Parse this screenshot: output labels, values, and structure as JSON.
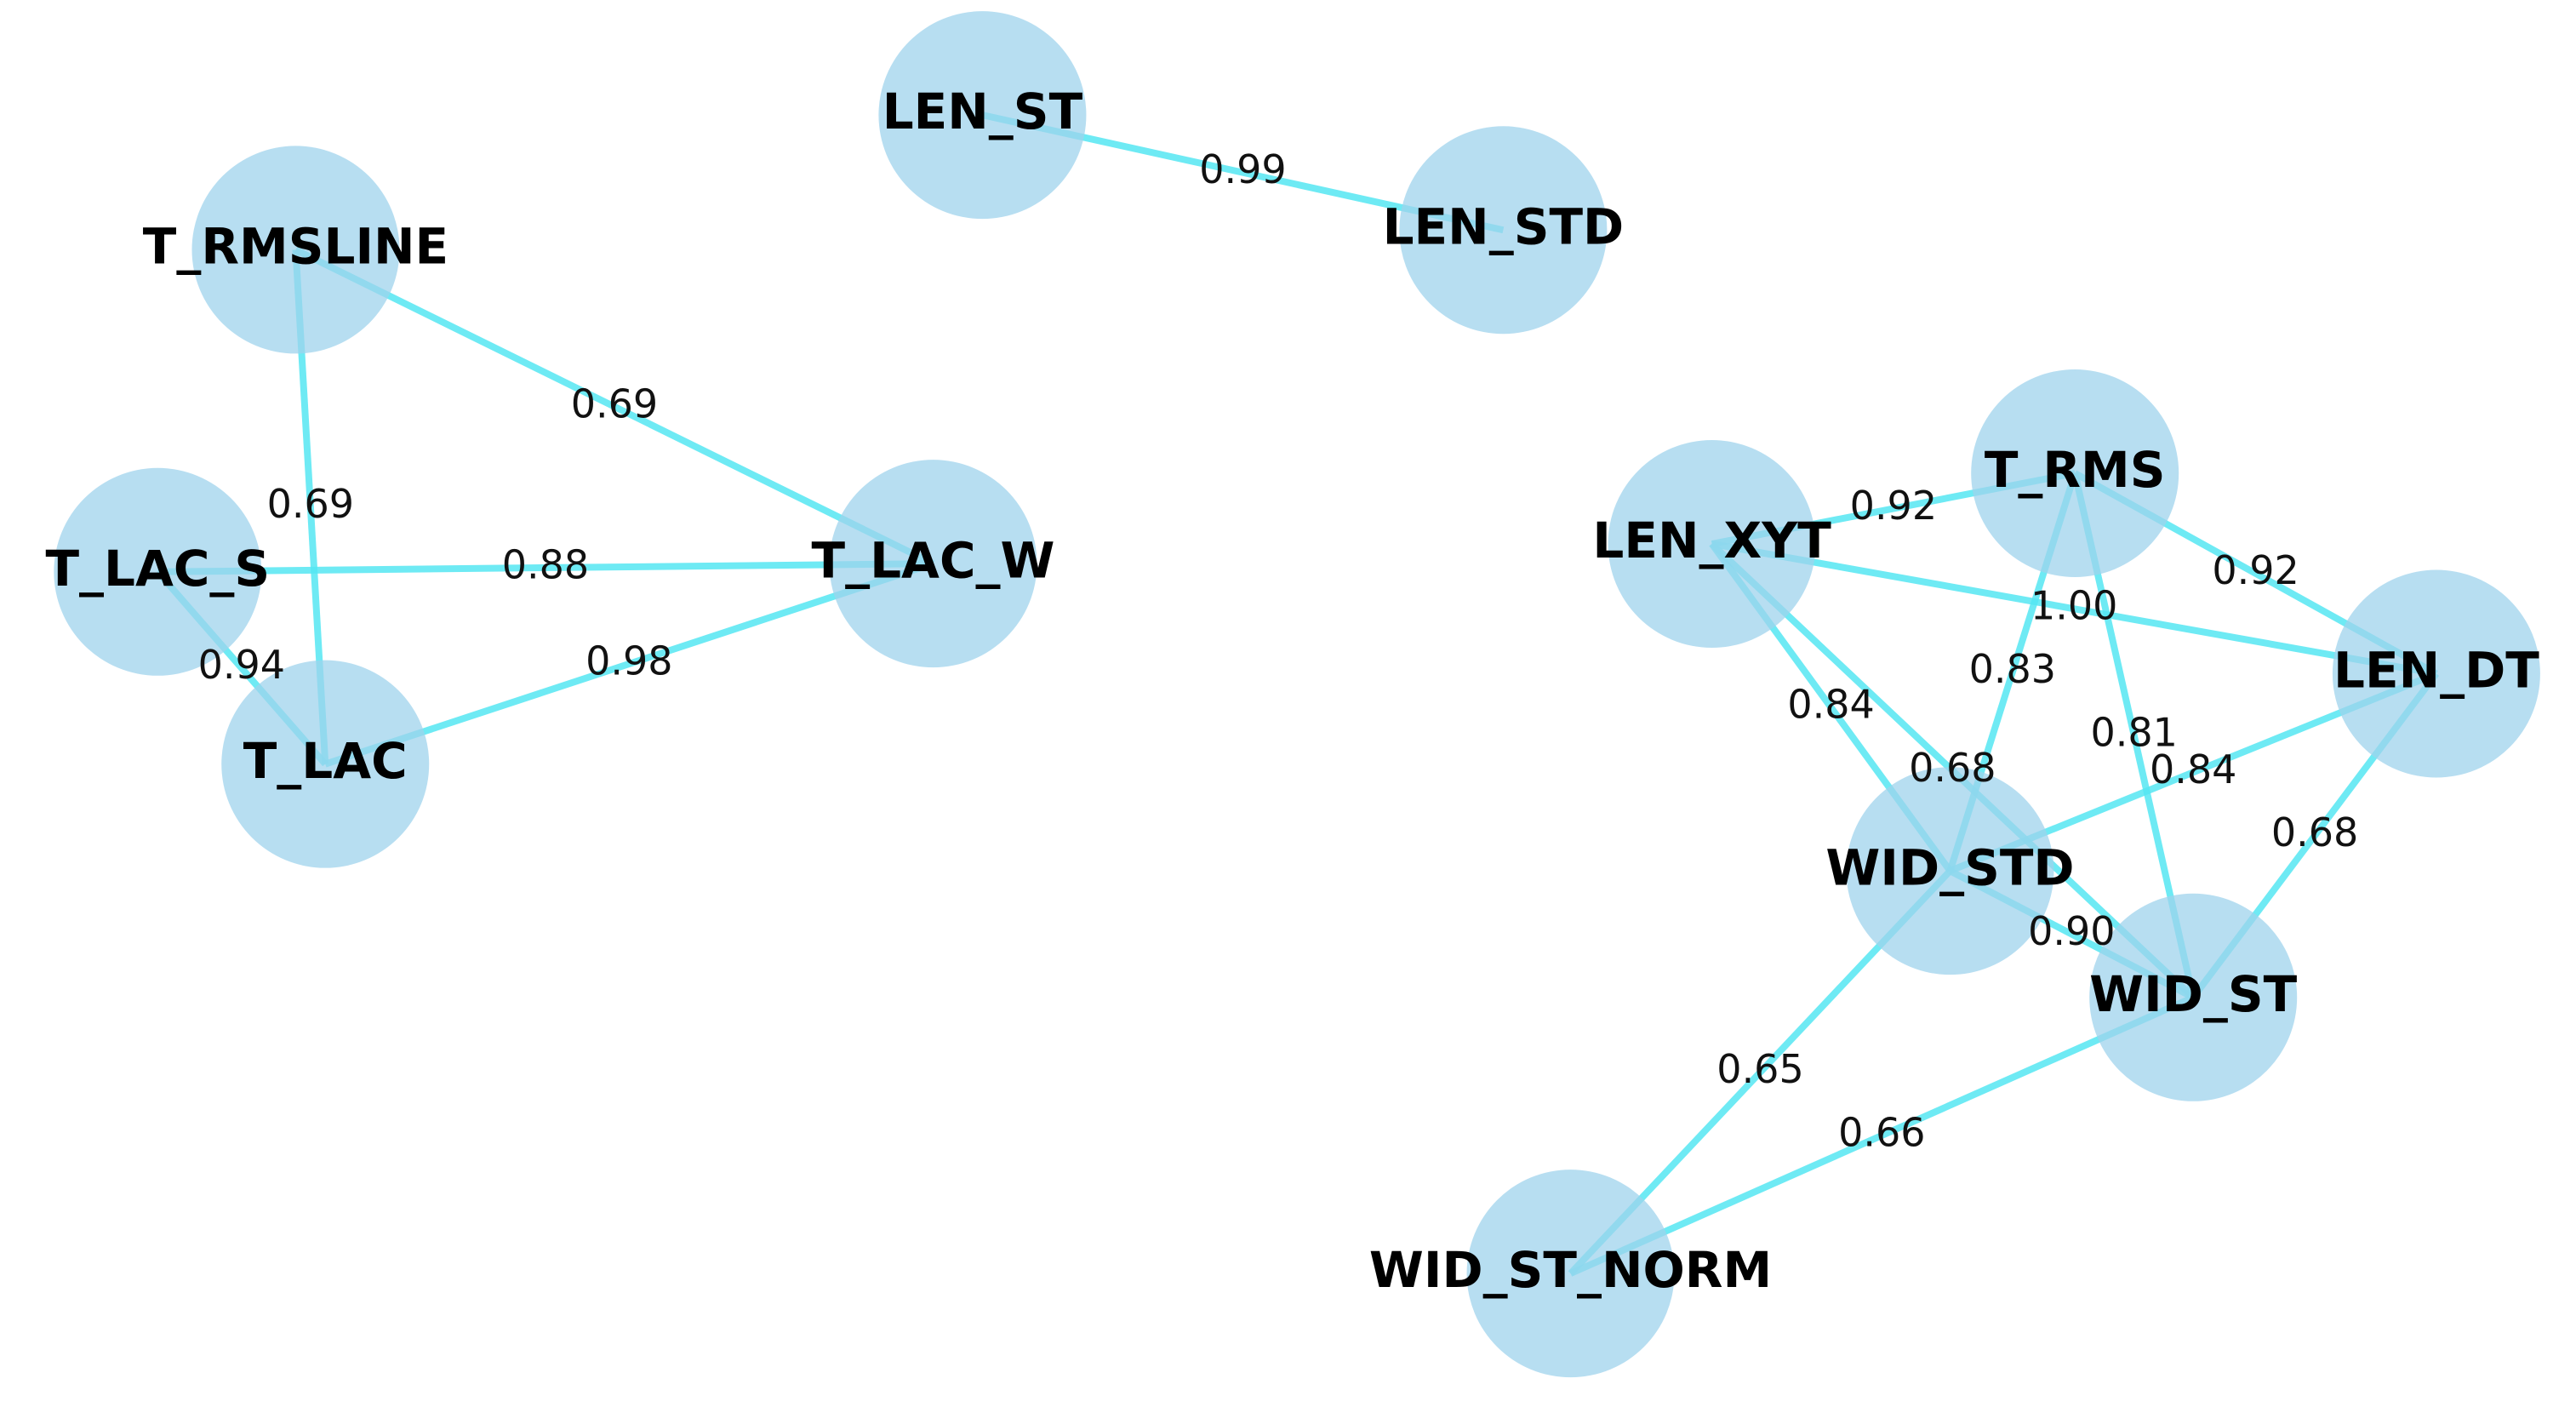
{
  "nodes": [
    {
      "label": "LEN_ST"
    },
    {
      "label": "LEN_STD"
    },
    {
      "label": "T_RMSLINE"
    },
    {
      "label": "T_LAC_S"
    },
    {
      "label": "T_LAC_W"
    },
    {
      "label": "T_LAC"
    },
    {
      "label": "LEN_XYT"
    },
    {
      "label": "T_RMS"
    },
    {
      "label": "LEN_DT"
    },
    {
      "label": "WID_STD"
    },
    {
      "label": "WID_ST"
    },
    {
      "label": "WID_ST_NORM"
    }
  ],
  "edges": [
    {
      "source": 0,
      "target": 1,
      "label": "0.99"
    },
    {
      "source": 2,
      "target": 4,
      "label": "0.69"
    },
    {
      "source": 2,
      "target": 5,
      "label": "0.69"
    },
    {
      "source": 3,
      "target": 4,
      "label": "0.88"
    },
    {
      "source": 3,
      "target": 5,
      "label": "0.94"
    },
    {
      "source": 5,
      "target": 4,
      "label": "0.98"
    },
    {
      "source": 6,
      "target": 7,
      "label": "0.92"
    },
    {
      "source": 7,
      "target": 8,
      "label": "0.92"
    },
    {
      "source": 6,
      "target": 8,
      "label": "1.00"
    },
    {
      "source": 6,
      "target": 9,
      "label": "0.84"
    },
    {
      "source": 6,
      "target": 10,
      "label": "0.68"
    },
    {
      "source": 7,
      "target": 9,
      "label": "0.83"
    },
    {
      "source": 7,
      "target": 10,
      "label": "0.81"
    },
    {
      "source": 8,
      "target": 9,
      "label": "0.84"
    },
    {
      "source": 8,
      "target": 10,
      "label": "0.68"
    },
    {
      "source": 9,
      "target": 10,
      "label": "0.90"
    },
    {
      "source": 9,
      "target": 11,
      "label": "0.65"
    },
    {
      "source": 10,
      "target": 11,
      "label": "0.66"
    }
  ]
}
